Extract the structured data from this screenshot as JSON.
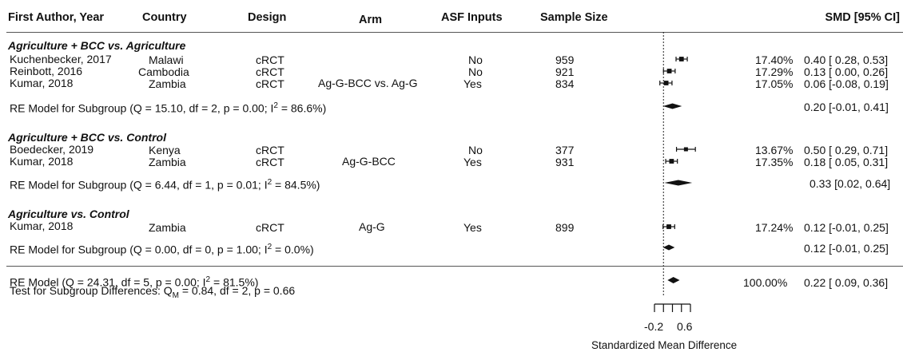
{
  "chart_data": {
    "type": "forest",
    "x_axis": {
      "label": "Standardized Mean Difference",
      "tick_labels": [
        "-0.2",
        "0.6"
      ],
      "range": [
        -0.2,
        0.6
      ],
      "minor_ticks": [
        -0.2,
        0.0,
        0.2,
        0.4,
        0.6
      ]
    },
    "headers": {
      "author": "First Author, Year",
      "country": "Country",
      "design": "Design",
      "arm": "Arm",
      "asf": "ASF Inputs",
      "n": "Sample Size",
      "smd": "SMD [95% CI]"
    },
    "groups": [
      {
        "title": "Agriculture + BCC vs. Agriculture",
        "studies": [
          {
            "author": "Kuchenbecker, 2017",
            "country": "Malawi",
            "design": "cRCT",
            "arm": "",
            "asf": "No",
            "n": "959",
            "weight_label": "17.40%",
            "ci_label": "0.40 [ 0.28, 0.53]",
            "smd": 0.4,
            "lo": 0.28,
            "hi": 0.53,
            "weight": 17.4
          },
          {
            "author": "Reinbott, 2016",
            "country": "Cambodia",
            "design": "cRCT",
            "arm": "",
            "asf": "No",
            "n": "921",
            "weight_label": "17.29%",
            "ci_label": "0.13 [ 0.00, 0.26]",
            "smd": 0.13,
            "lo": 0.0,
            "hi": 0.26,
            "weight": 17.29
          },
          {
            "author": "Kumar, 2018",
            "country": "Zambia",
            "design": "cRCT",
            "arm": "Ag-G-BCC vs. Ag-G",
            "asf": "Yes",
            "n": "834",
            "weight_label": "17.05%",
            "ci_label": "0.06 [-0.08, 0.19]",
            "smd": 0.06,
            "lo": -0.08,
            "hi": 0.19,
            "weight": 17.05
          }
        ],
        "subgroup": {
          "label": "RE Model for Subgroup (Q = 15.10, df = 2, p = 0.00; I",
          "sup": "2",
          "label_end": " = 86.6%)",
          "ci_label": "0.20 [-0.01, 0.41]",
          "est": 0.2,
          "lo": -0.01,
          "hi": 0.41
        }
      },
      {
        "title": "Agriculture + BCC vs. Control",
        "studies": [
          {
            "author": "Boedecker, 2019",
            "country": "Kenya",
            "design": "cRCT",
            "arm": "",
            "asf": "No",
            "n": "377",
            "weight_label": "13.67%",
            "ci_label": "0.50 [ 0.29, 0.71]",
            "smd": 0.5,
            "lo": 0.29,
            "hi": 0.71,
            "weight": 13.67
          },
          {
            "author": "Kumar, 2018",
            "country": "Zambia",
            "design": "cRCT",
            "arm": "Ag-G-BCC",
            "asf": "Yes",
            "n": "931",
            "weight_label": "17.35%",
            "ci_label": "0.18 [ 0.05, 0.31]",
            "smd": 0.18,
            "lo": 0.05,
            "hi": 0.31,
            "weight": 17.35
          }
        ],
        "subgroup": {
          "label": "RE Model for Subgroup (Q = 6.44, df = 1, p = 0.01; I",
          "sup": "2",
          "label_end": " = 84.5%)",
          "ci_label": "0.33 [0.02, 0.64]",
          "est": 0.33,
          "lo": 0.02,
          "hi": 0.64
        }
      },
      {
        "title": "Agriculture vs. Control",
        "studies": [
          {
            "author": "Kumar, 2018",
            "country": "Zambia",
            "design": "cRCT",
            "arm": "Ag-G",
            "asf": "Yes",
            "n": "899",
            "weight_label": "17.24%",
            "ci_label": "0.12 [-0.01, 0.25]",
            "smd": 0.12,
            "lo": -0.01,
            "hi": 0.25,
            "weight": 17.24
          }
        ],
        "subgroup": {
          "label": "RE Model for Subgroup (Q = 0.00, df = 0, p = 1.00; I",
          "sup": "2",
          "label_end": " = 0.0%)",
          "ci_label": "0.12 [-0.01, 0.25]",
          "est": 0.12,
          "lo": -0.01,
          "hi": 0.25
        }
      }
    ],
    "overall": {
      "label": "RE Model (Q = 24.31, df = 5, p = 0.00; I",
      "sup": "2",
      "label_end": " = 81.5%)",
      "weight_label": "100.00%",
      "ci_label": "0.22 [ 0.09, 0.36]",
      "est": 0.22,
      "lo": 0.09,
      "hi": 0.36
    },
    "test_subgroup": {
      "prefix": "Test for Subgroup Differences: Q",
      "sub": "M",
      "suffix": " = 0.84, df = 2, p = 0.66"
    }
  }
}
